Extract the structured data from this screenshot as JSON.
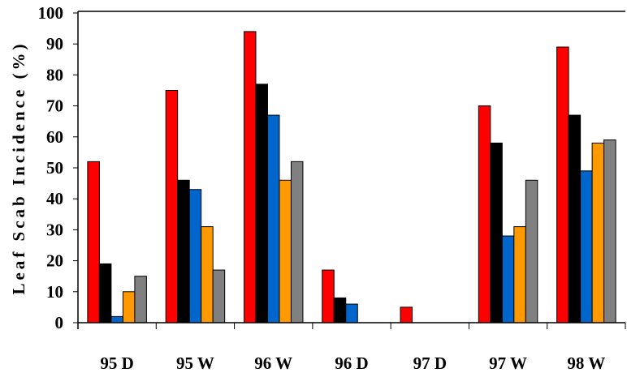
{
  "chart_data": {
    "type": "bar",
    "title": "",
    "xlabel": "",
    "ylabel": "Leaf Scab Incidence (%)",
    "ylim": [
      0,
      100
    ],
    "yticks": [
      "0",
      "10",
      "20",
      "30",
      "40",
      "50",
      "60",
      "70",
      "80",
      "90",
      "100"
    ],
    "grid": false,
    "legend": "none",
    "categories": [
      "95 D",
      "95 W",
      "96 W",
      "96 D",
      "97 D",
      "97 W",
      "98 W"
    ],
    "series": [
      {
        "color": "#FF0000",
        "values": [
          52,
          75,
          94,
          17,
          5,
          70,
          89
        ]
      },
      {
        "color": "#000000",
        "values": [
          19,
          46,
          77,
          8,
          0,
          58,
          67
        ]
      },
      {
        "color": "#0066CC",
        "values": [
          2,
          43,
          67,
          6,
          0,
          28,
          49
        ]
      },
      {
        "color": "#FF9900",
        "values": [
          10,
          31,
          46,
          0,
          0,
          31,
          58
        ]
      },
      {
        "color": "#808080",
        "values": [
          15,
          17,
          52,
          0,
          0,
          46,
          59
        ]
      }
    ]
  }
}
